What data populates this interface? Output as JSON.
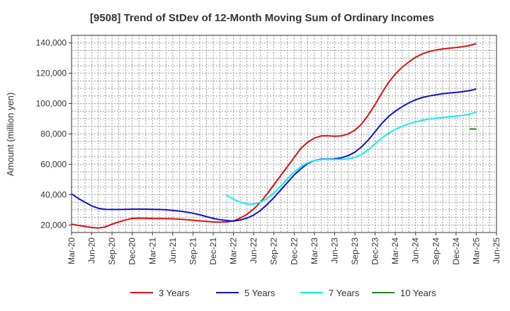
{
  "chart_data": {
    "type": "line",
    "title": "[9508]  Trend of StDev of 12-Month Moving Sum of Ordinary Incomes",
    "xlabel": "",
    "ylabel": "Amount (million yen)",
    "x_tick_labels": [
      "Mar-20",
      "Jun-20",
      "Sep-20",
      "Dec-20",
      "Mar-21",
      "Jun-21",
      "Sep-21",
      "Dec-21",
      "Mar-22",
      "Jun-22",
      "Sep-22",
      "Dec-22",
      "Mar-23",
      "Jun-23",
      "Sep-23",
      "Dec-23",
      "Mar-24",
      "Jun-24",
      "Sep-24",
      "Dec-24",
      "Mar-25",
      "Jun-25"
    ],
    "y_ticks": [
      20000,
      40000,
      60000,
      80000,
      100000,
      120000,
      140000
    ],
    "y_tick_labels": [
      "20,000",
      "40,000",
      "60,000",
      "80,000",
      "100,000",
      "120,000",
      "140,000"
    ],
    "ylim": [
      15000,
      145000
    ],
    "grid": true,
    "legend_position": "bottom",
    "series": [
      {
        "name": "3 Years",
        "color": "#dd1111",
        "points": [
          [
            "Mar-20",
            20500
          ],
          [
            "Apr-20",
            19700
          ],
          [
            "May-20",
            19000
          ],
          [
            "Jun-20",
            18300
          ],
          [
            "Jul-20",
            18000
          ],
          [
            "Aug-20",
            18700
          ],
          [
            "Sep-20",
            20500
          ],
          [
            "Oct-20",
            22000
          ],
          [
            "Nov-20",
            23300
          ],
          [
            "Dec-20",
            24300
          ],
          [
            "Jan-21",
            24500
          ],
          [
            "Feb-21",
            24400
          ],
          [
            "Mar-21",
            24200
          ],
          [
            "Apr-21",
            24200
          ],
          [
            "May-21",
            24200
          ],
          [
            "Jun-21",
            24100
          ],
          [
            "Jul-21",
            23800
          ],
          [
            "Aug-21",
            23500
          ],
          [
            "Sep-21",
            23100
          ],
          [
            "Oct-21",
            22700
          ],
          [
            "Nov-21",
            22300
          ],
          [
            "Dec-21",
            22000
          ],
          [
            "Jan-22",
            21900
          ],
          [
            "Feb-22",
            22000
          ],
          [
            "Mar-22",
            22600
          ],
          [
            "Apr-22",
            24500
          ],
          [
            "May-22",
            27000
          ],
          [
            "Jun-22",
            30500
          ],
          [
            "Jul-22",
            35000
          ],
          [
            "Aug-22",
            40500
          ],
          [
            "Sep-22",
            46500
          ],
          [
            "Oct-22",
            52500
          ],
          [
            "Nov-22",
            58500
          ],
          [
            "Dec-22",
            64500
          ],
          [
            "Jan-23",
            70500
          ],
          [
            "Feb-23",
            74500
          ],
          [
            "Mar-23",
            77300
          ],
          [
            "Apr-23",
            78700
          ],
          [
            "May-23",
            78800
          ],
          [
            "Jun-23",
            78500
          ],
          [
            "Jul-23",
            78700
          ],
          [
            "Aug-23",
            80000
          ],
          [
            "Sep-23",
            82500
          ],
          [
            "Oct-23",
            86500
          ],
          [
            "Nov-23",
            92500
          ],
          [
            "Dec-23",
            99500
          ],
          [
            "Jan-24",
            107000
          ],
          [
            "Feb-24",
            114000
          ],
          [
            "Mar-24",
            119500
          ],
          [
            "Apr-24",
            124000
          ],
          [
            "May-24",
            127500
          ],
          [
            "Jun-24",
            130500
          ],
          [
            "Jul-24",
            132800
          ],
          [
            "Aug-24",
            134300
          ],
          [
            "Sep-24",
            135300
          ],
          [
            "Oct-24",
            136000
          ],
          [
            "Nov-24",
            136500
          ],
          [
            "Dec-24",
            137000
          ],
          [
            "Jan-25",
            137500
          ],
          [
            "Feb-25",
            138300
          ],
          [
            "Mar-25",
            139500
          ]
        ]
      },
      {
        "name": "5 Years",
        "color": "#1111cc",
        "points": [
          [
            "Mar-20",
            40500
          ],
          [
            "Apr-20",
            37500
          ],
          [
            "May-20",
            35000
          ],
          [
            "Jun-20",
            32500
          ],
          [
            "Jul-20",
            31000
          ],
          [
            "Aug-20",
            30300
          ],
          [
            "Sep-20",
            30200
          ],
          [
            "Oct-20",
            30200
          ],
          [
            "Nov-20",
            30300
          ],
          [
            "Dec-20",
            30400
          ],
          [
            "Jan-21",
            30400
          ],
          [
            "Feb-21",
            30400
          ],
          [
            "Mar-21",
            30300
          ],
          [
            "Apr-21",
            30200
          ],
          [
            "May-21",
            30000
          ],
          [
            "Jun-21",
            29600
          ],
          [
            "Jul-21",
            29100
          ],
          [
            "Aug-21",
            28500
          ],
          [
            "Sep-21",
            27700
          ],
          [
            "Oct-21",
            26700
          ],
          [
            "Nov-21",
            25500
          ],
          [
            "Dec-21",
            24300
          ],
          [
            "Jan-22",
            23500
          ],
          [
            "Feb-22",
            22900
          ],
          [
            "Mar-22",
            22600
          ],
          [
            "Apr-22",
            23200
          ],
          [
            "May-22",
            24500
          ],
          [
            "Jun-22",
            26500
          ],
          [
            "Jul-22",
            29500
          ],
          [
            "Aug-22",
            33500
          ],
          [
            "Sep-22",
            38000
          ],
          [
            "Oct-22",
            43000
          ],
          [
            "Nov-22",
            48000
          ],
          [
            "Dec-22",
            53000
          ],
          [
            "Jan-23",
            57000
          ],
          [
            "Feb-23",
            60500
          ],
          [
            "Mar-23",
            62500
          ],
          [
            "Apr-23",
            63400
          ],
          [
            "May-23",
            63500
          ],
          [
            "Jun-23",
            63600
          ],
          [
            "Jul-23",
            64300
          ],
          [
            "Aug-23",
            65700
          ],
          [
            "Sep-23",
            68000
          ],
          [
            "Oct-23",
            71500
          ],
          [
            "Nov-23",
            76000
          ],
          [
            "Dec-23",
            81500
          ],
          [
            "Jan-24",
            87000
          ],
          [
            "Feb-24",
            91500
          ],
          [
            "Mar-24",
            95000
          ],
          [
            "Apr-24",
            98000
          ],
          [
            "May-24",
            100500
          ],
          [
            "Jun-24",
            102500
          ],
          [
            "Jul-24",
            104000
          ],
          [
            "Aug-24",
            105000
          ],
          [
            "Sep-24",
            105800
          ],
          [
            "Oct-24",
            106500
          ],
          [
            "Nov-24",
            107000
          ],
          [
            "Dec-24",
            107400
          ],
          [
            "Jan-25",
            107900
          ],
          [
            "Feb-25",
            108500
          ],
          [
            "Mar-25",
            109700
          ]
        ]
      },
      {
        "name": "7 Years",
        "color": "#11eeee",
        "points": [
          [
            "Feb-22",
            39500
          ],
          [
            "Mar-22",
            37000
          ],
          [
            "Apr-22",
            35000
          ],
          [
            "May-22",
            33800
          ],
          [
            "Jun-22",
            33800
          ],
          [
            "Jul-22",
            35000
          ],
          [
            "Aug-22",
            37500
          ],
          [
            "Sep-22",
            41000
          ],
          [
            "Oct-22",
            45500
          ],
          [
            "Nov-22",
            50500
          ],
          [
            "Dec-22",
            55000
          ],
          [
            "Jan-23",
            58500
          ],
          [
            "Feb-23",
            61000
          ],
          [
            "Mar-23",
            62500
          ],
          [
            "Apr-23",
            63200
          ],
          [
            "May-23",
            63300
          ],
          [
            "Jun-23",
            63200
          ],
          [
            "Jul-23",
            63300
          ],
          [
            "Aug-23",
            63600
          ],
          [
            "Sep-23",
            64500
          ],
          [
            "Oct-23",
            66500
          ],
          [
            "Nov-23",
            69500
          ],
          [
            "Dec-23",
            73500
          ],
          [
            "Jan-24",
            77300
          ],
          [
            "Feb-24",
            80500
          ],
          [
            "Mar-24",
            83000
          ],
          [
            "Apr-24",
            85000
          ],
          [
            "May-24",
            86700
          ],
          [
            "Jun-24",
            88000
          ],
          [
            "Jul-24",
            89000
          ],
          [
            "Aug-24",
            89800
          ],
          [
            "Sep-24",
            90400
          ],
          [
            "Oct-24",
            90900
          ],
          [
            "Nov-24",
            91300
          ],
          [
            "Dec-24",
            91700
          ],
          [
            "Jan-25",
            92200
          ],
          [
            "Feb-25",
            93000
          ],
          [
            "Mar-25",
            94500
          ]
        ]
      },
      {
        "name": "10 Years",
        "color": "#228822",
        "points": [
          [
            "Feb-25",
            83300
          ],
          [
            "Mar-25",
            83200
          ]
        ]
      }
    ]
  }
}
